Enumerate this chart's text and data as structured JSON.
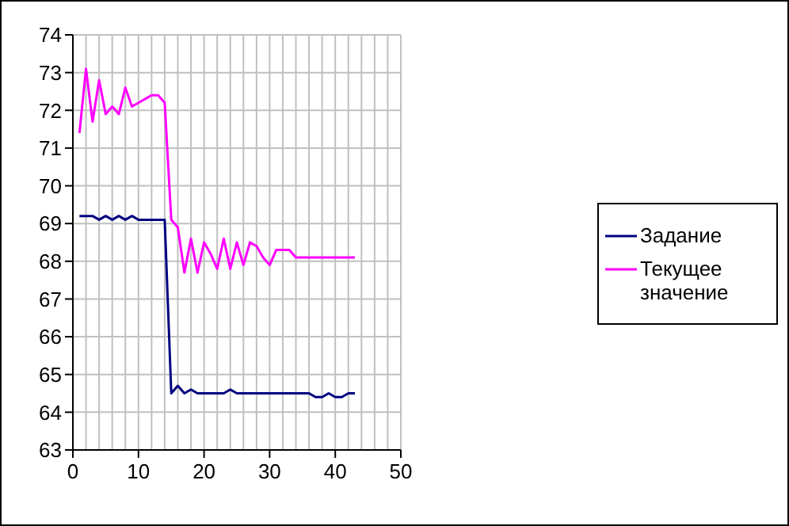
{
  "chart_data": {
    "type": "line",
    "x": [
      1,
      2,
      3,
      4,
      5,
      6,
      7,
      8,
      9,
      10,
      11,
      12,
      13,
      14,
      15,
      16,
      17,
      18,
      19,
      20,
      21,
      22,
      23,
      24,
      25,
      26,
      27,
      28,
      29,
      30,
      31,
      32,
      33,
      34,
      35,
      36,
      37,
      38,
      39,
      40,
      41,
      42,
      43
    ],
    "series": [
      {
        "name": "Задание",
        "color": "#000080",
        "values": [
          69.2,
          69.2,
          69.2,
          69.1,
          69.2,
          69.1,
          69.2,
          69.1,
          69.2,
          69.1,
          69.1,
          69.1,
          69.1,
          69.1,
          64.5,
          64.7,
          64.5,
          64.6,
          64.5,
          64.5,
          64.5,
          64.5,
          64.5,
          64.6,
          64.5,
          64.5,
          64.5,
          64.5,
          64.5,
          64.5,
          64.5,
          64.5,
          64.5,
          64.5,
          64.5,
          64.5,
          64.4,
          64.4,
          64.5,
          64.4,
          64.4,
          64.5,
          64.5
        ]
      },
      {
        "name": "Текущее значение",
        "color": "#ff00ff",
        "values": [
          71.4,
          73.1,
          71.7,
          72.8,
          71.9,
          72.1,
          71.9,
          72.6,
          72.1,
          72.2,
          72.3,
          72.4,
          72.4,
          72.2,
          69.1,
          68.9,
          67.7,
          68.6,
          67.7,
          68.5,
          68.2,
          67.8,
          68.6,
          67.8,
          68.5,
          67.9,
          68.5,
          68.4,
          68.1,
          67.9,
          68.3,
          68.3,
          68.3,
          68.1,
          68.1,
          68.1,
          68.1,
          68.1,
          68.1,
          68.1,
          68.1,
          68.1,
          68.1
        ]
      }
    ],
    "xlim": [
      0,
      50
    ],
    "xticks": [
      0,
      {
        "value": 2,
        "label": null
      },
      {
        "value": 4,
        "label": null
      },
      {
        "value": 6,
        "label": null
      },
      {
        "value": 8,
        "label": null
      },
      10,
      {
        "value": 12,
        "label": null
      },
      {
        "value": 14,
        "label": null
      },
      {
        "value": 16,
        "label": null
      },
      {
        "value": 18,
        "label": null
      },
      20,
      {
        "value": 22,
        "label": null
      },
      {
        "value": 24,
        "label": null
      },
      {
        "value": 26,
        "label": null
      },
      {
        "value": 28,
        "label": null
      },
      30,
      {
        "value": 32,
        "label": null
      },
      {
        "value": 34,
        "label": null
      },
      {
        "value": 36,
        "label": null
      },
      {
        "value": 38,
        "label": null
      },
      40,
      {
        "value": 42,
        "label": null
      },
      {
        "value": 44,
        "label": null
      },
      {
        "value": 46,
        "label": null
      },
      {
        "value": 48,
        "label": null
      },
      50
    ],
    "ylim": [
      63,
      74
    ],
    "yticks": [
      63,
      64,
      65,
      66,
      67,
      68,
      69,
      70,
      71,
      72,
      73,
      74
    ],
    "grid": true,
    "legend": "right",
    "marker": "none",
    "line_style": "solid"
  }
}
